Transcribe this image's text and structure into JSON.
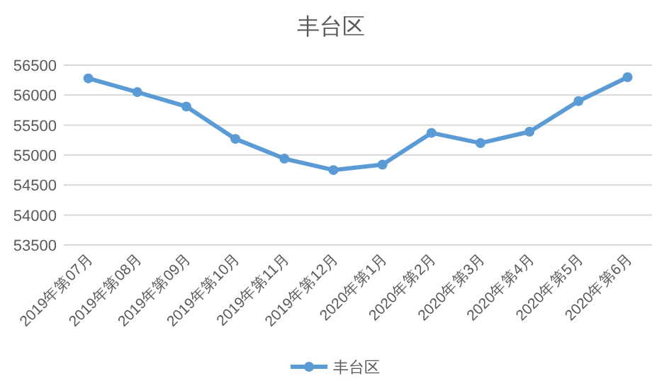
{
  "chart_data": {
    "type": "line",
    "title": "丰台区",
    "categories": [
      "2019年第07月",
      "2019年第08月",
      "2019年第09月",
      "2019年第10月",
      "2019年第11月",
      "2019年第12月",
      "2020年第1月",
      "2020年第2月",
      "2020年第3月",
      "2020年第4月",
      "2020年第5月",
      "2020年第6月"
    ],
    "series": [
      {
        "name": "丰台区",
        "color": "#5b9bd5",
        "values": [
          56280,
          56050,
          55810,
          55270,
          54940,
          54750,
          54840,
          55370,
          55200,
          55390,
          55900,
          56300
        ]
      }
    ],
    "ylim": [
      53500,
      56500
    ],
    "yticks": [
      53500,
      54000,
      54500,
      55000,
      55500,
      56000,
      56500
    ],
    "grid": "y",
    "legend": "bottom",
    "marker": "circle",
    "line_style": "solid"
  }
}
